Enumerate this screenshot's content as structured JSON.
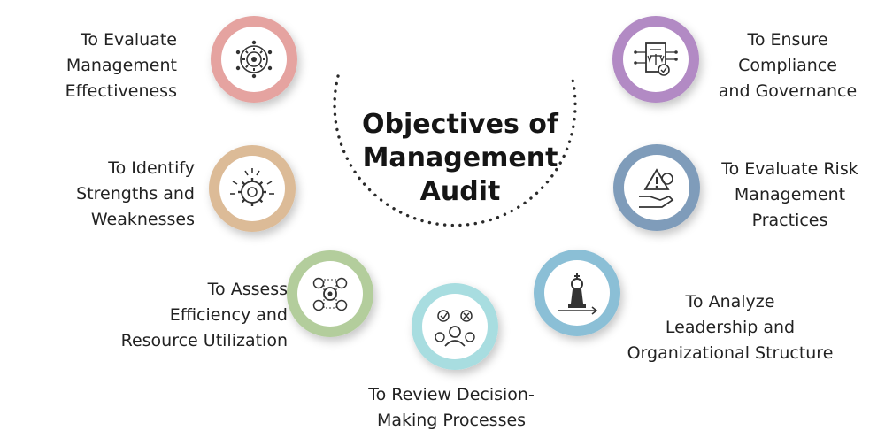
{
  "title": "Objectives of\nManagement\nAudit",
  "objectives": [
    {
      "label": "To Evaluate\nManagement\nEffectiveness",
      "icon": "gear-network-icon",
      "ring_color": "#e5a3a0"
    },
    {
      "label": "To Identify\nStrengths and\nWeaknesses",
      "icon": "gear-refresh-icon",
      "ring_color": "#dcbb97"
    },
    {
      "label": "To Assess\nEfficiency and\nResource Utilization",
      "icon": "resource-gear-icon",
      "ring_color": "#b3cd9c"
    },
    {
      "label": "To Review Decision-\nMaking Processes",
      "icon": "decision-person-icon",
      "ring_color": "#a8dde0"
    },
    {
      "label": "To Analyze\nLeadership and\nOrganizational Structure",
      "icon": "chess-king-icon",
      "ring_color": "#8bbfd6"
    },
    {
      "label": "To Evaluate Risk\nManagement\nPractices",
      "icon": "risk-hand-icon",
      "ring_color": "#7f9cba"
    },
    {
      "label": "To Ensure\nCompliance\nand Governance",
      "icon": "compliance-document-icon",
      "ring_color": "#b28ac4"
    }
  ]
}
